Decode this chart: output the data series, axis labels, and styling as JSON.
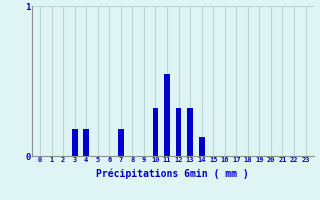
{
  "hours": [
    0,
    1,
    2,
    3,
    4,
    5,
    6,
    7,
    8,
    9,
    10,
    11,
    12,
    13,
    14,
    15,
    16,
    17,
    18,
    19,
    20,
    21,
    22,
    23
  ],
  "values": [
    0,
    0,
    0,
    0.18,
    0.18,
    0,
    0,
    0.18,
    0,
    0,
    0.32,
    0.55,
    0.32,
    0.32,
    0.13,
    0,
    0,
    0,
    0,
    0,
    0,
    0,
    0,
    0
  ],
  "bar_color": "#0000cc",
  "bg_color": "#dff4f4",
  "grid_color": "#b8d8d8",
  "axis_color": "#909090",
  "text_color": "#0000cc",
  "xlabel": "Précipitations 6min ( mm )",
  "ylim": [
    0,
    1
  ],
  "ytick_labels": [
    "0",
    "1"
  ],
  "ytick_vals": [
    0,
    1
  ],
  "bar_width": 0.5
}
